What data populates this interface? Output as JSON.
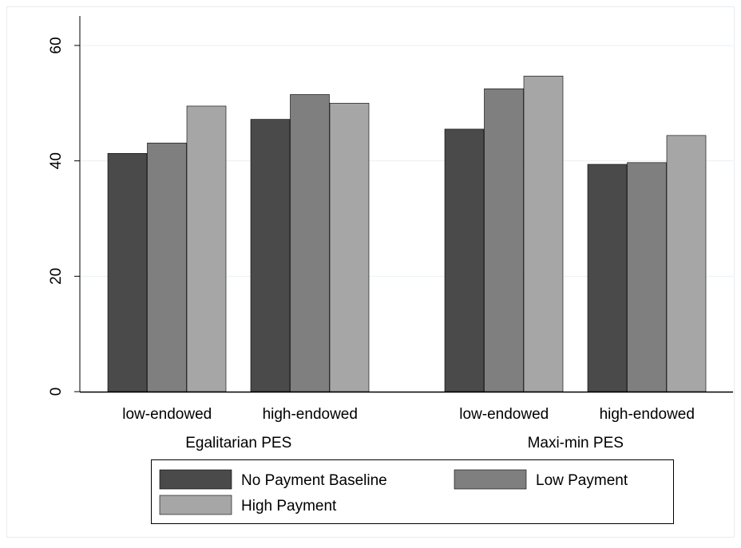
{
  "chart_data": {
    "type": "bar",
    "title": "",
    "xlabel": "",
    "ylabel": "",
    "ylim": [
      0,
      60
    ],
    "yticks": [
      0,
      20,
      40,
      60
    ],
    "grid": true,
    "legend_placement": "bottom",
    "groups": [
      {
        "label": "Egalitarian PES",
        "categories": [
          "low-endowed",
          "high-endowed"
        ]
      },
      {
        "label": "Maxi-min PES",
        "categories": [
          "low-endowed",
          "high-endowed"
        ]
      }
    ],
    "series": [
      {
        "name": "No Payment Baseline",
        "color": "#4a4a4a",
        "values": [
          41.3,
          47.2,
          45.5,
          39.4
        ]
      },
      {
        "name": "Low Payment",
        "color": "#7f7f7f",
        "values": [
          43.1,
          51.5,
          52.5,
          39.7
        ]
      },
      {
        "name": "High Payment",
        "color": "#a6a6a6",
        "values": [
          49.5,
          50.0,
          54.7,
          44.4
        ]
      }
    ]
  }
}
